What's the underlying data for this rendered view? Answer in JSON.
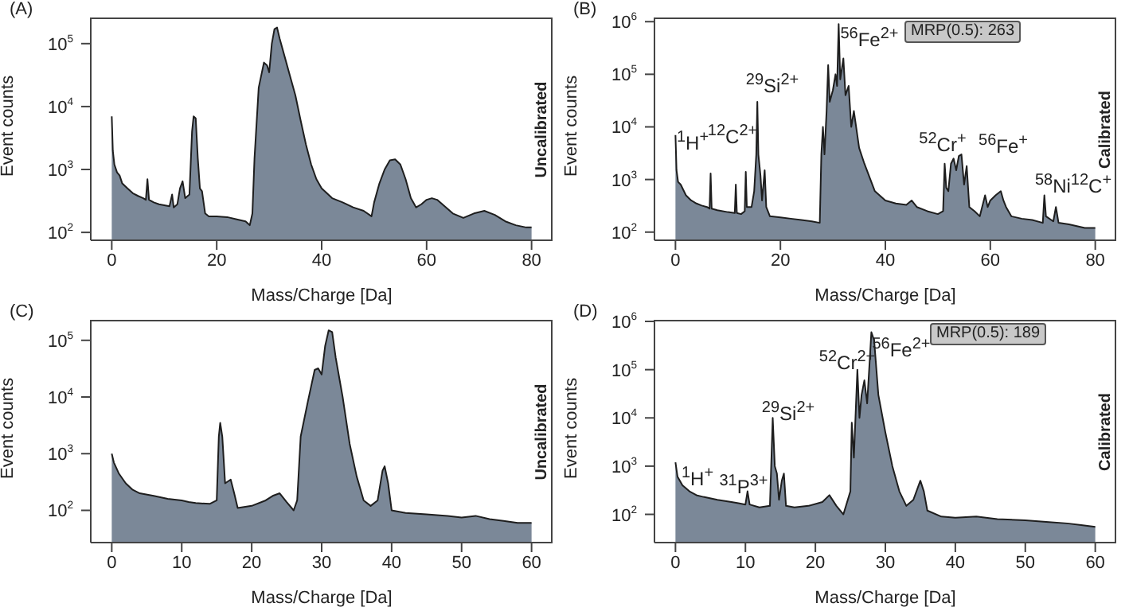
{
  "chart_data": [
    {
      "type": "area",
      "title": "(A)",
      "xlabel": "Mass/Charge [Da]",
      "ylabel": "Event counts",
      "y2label": "Uncalibrated",
      "color": "#7b8898",
      "log": true,
      "xlim": [
        -4,
        84
      ],
      "xticks": [
        0,
        20,
        40,
        60,
        80
      ],
      "ylim": [
        75,
        260000
      ],
      "yticks": [
        {
          "value": 100,
          "label": "10$^{2}$"
        },
        {
          "value": 1000,
          "label": "10$^{3}$"
        },
        {
          "value": 10000,
          "label": "10$^{4}$"
        },
        {
          "value": 100000,
          "label": "10$^{5}$"
        }
      ],
      "x": [
        0,
        0.2,
        0.5,
        1,
        1.5,
        2,
        3,
        4,
        5,
        6,
        6.5,
        6.8,
        7.1,
        8,
        9,
        10,
        11,
        11.5,
        11.8,
        12.5,
        13,
        13.5,
        14,
        14.8,
        15.3,
        15.6,
        16,
        16.4,
        16.8,
        17.2,
        17.8,
        18.5,
        20,
        22,
        24,
        25.5,
        26.3,
        26.8,
        27.2,
        28,
        29,
        29.6,
        30,
        30.5,
        31,
        31.5,
        32,
        33,
        34,
        35,
        36,
        37,
        38,
        39,
        40,
        42,
        44,
        46,
        48,
        49.5,
        50,
        51,
        52,
        53,
        54,
        55,
        56,
        57,
        58,
        59,
        60,
        61,
        62,
        63,
        65,
        67,
        69,
        71,
        73,
        75,
        77,
        79,
        80
      ],
      "values": [
        7000,
        2000,
        1200,
        900,
        800,
        600,
        500,
        420,
        380,
        350,
        330,
        700,
        330,
        300,
        280,
        270,
        260,
        400,
        250,
        280,
        500,
        650,
        350,
        400,
        4000,
        7000,
        6500,
        1500,
        500,
        450,
        200,
        180,
        180,
        175,
        160,
        150,
        130,
        200,
        1500,
        20000,
        50000,
        45000,
        35000,
        100000,
        170000,
        180000,
        120000,
        60000,
        30000,
        15000,
        6000,
        2500,
        1200,
        700,
        500,
        350,
        300,
        250,
        220,
        180,
        300,
        600,
        1000,
        1400,
        1450,
        1200,
        700,
        350,
        250,
        280,
        330,
        350,
        330,
        280,
        200,
        170,
        200,
        220,
        190,
        150,
        130,
        120,
        120
      ]
    },
    {
      "type": "area",
      "title": "(B)",
      "xlabel": "Mass/Charge [Da]",
      "ylabel": "Event counts",
      "y2label": "Calibrated",
      "color": "#7b8898",
      "log": true,
      "xlim": [
        -4,
        84
      ],
      "xticks": [
        0,
        20,
        40,
        60,
        80
      ],
      "ylim": [
        70,
        1200000
      ],
      "yticks": [
        {
          "value": 100,
          "label": "10$^{2}$"
        },
        {
          "value": 1000,
          "label": "10$^{3}$"
        },
        {
          "value": 10000,
          "label": "10$^{4}$"
        },
        {
          "value": 100000,
          "label": "10$^{5}$"
        },
        {
          "value": 1000000,
          "label": "10$^{6}$"
        }
      ],
      "x": [
        0,
        0.2,
        0.5,
        1,
        2,
        3,
        4,
        5,
        6,
        6.5,
        6.7,
        6.9,
        8,
        10,
        11.3,
        11.5,
        11.7,
        12.5,
        13.2,
        13.4,
        13.6,
        14.5,
        15,
        15.4,
        15.6,
        15.8,
        16.2,
        16.5,
        17,
        17.3,
        18,
        20,
        22,
        24,
        26,
        27.5,
        27.8,
        28.1,
        28.4,
        28.8,
        29.1,
        29.4,
        30,
        30.5,
        30.8,
        31.1,
        31.4,
        32,
        32.4,
        33,
        33.5,
        34,
        35,
        36,
        38,
        40,
        42,
        44,
        45,
        46,
        48,
        50,
        51,
        51.3,
        51.6,
        52,
        52.5,
        53,
        53.5,
        54,
        54.5,
        55,
        55.5,
        56,
        57,
        58,
        59,
        59.5,
        60,
        61,
        62,
        62.5,
        63,
        64,
        66,
        68,
        70,
        70.3,
        70.6,
        72,
        72.5,
        73,
        75,
        78,
        80
      ],
      "values": [
        7000,
        1500,
        900,
        800,
        500,
        400,
        350,
        320,
        300,
        280,
        1300,
        280,
        260,
        240,
        230,
        800,
        230,
        220,
        250,
        1400,
        300,
        300,
        600,
        3000,
        30000,
        3000,
        1200,
        400,
        1500,
        300,
        200,
        190,
        180,
        170,
        160,
        150,
        3000,
        10000,
        3000,
        20000,
        150000,
        30000,
        50000,
        100000,
        60000,
        900000,
        80000,
        200000,
        40000,
        60000,
        10000,
        20000,
        4000,
        2000,
        600,
        400,
        350,
        330,
        400,
        300,
        250,
        220,
        250,
        2000,
        700,
        600,
        2000,
        2500,
        1500,
        2800,
        3000,
        800,
        1800,
        300,
        250,
        200,
        500,
        300,
        400,
        500,
        600,
        400,
        300,
        200,
        180,
        170,
        150,
        500,
        200,
        160,
        300,
        150,
        140,
        120,
        120
      ],
      "annotations": [
        "MRP(0.5): 263",
        "$^{1}$H$^{+}$",
        "$^{12}$C$^{2+}$",
        "$^{29}$Si$^{2+}$",
        "$^{56}$Fe$^{2+}$",
        "$^{52}$Cr$^{+}$",
        "$^{56}$Fe$^{+}$",
        "$^{58}$Ni$^{12}$C$^{+}$"
      ]
    },
    {
      "type": "area",
      "title": "(C)",
      "xlabel": "Mass/Charge [Da]",
      "ylabel": "Event counts",
      "y2label": "Uncalibrated",
      "color": "#7b8898",
      "log": true,
      "xlim": [
        -3,
        63
      ],
      "xticks": [
        0,
        10,
        20,
        30,
        40,
        50,
        60
      ],
      "ylim": [
        27,
        230000
      ],
      "yticks": [
        {
          "value": 100,
          "label": "10$^{2}$"
        },
        {
          "value": 1000,
          "label": "10$^{3}$"
        },
        {
          "value": 10000,
          "label": "10$^{4}$"
        },
        {
          "value": 100000,
          "label": "10$^{5}$"
        }
      ],
      "x": [
        0,
        0.3,
        1,
        2,
        3,
        4,
        6,
        8,
        10,
        11,
        12,
        14,
        15,
        15.3,
        15.5,
        15.8,
        16.2,
        17,
        17.5,
        18,
        20,
        22,
        23,
        24,
        25,
        26,
        26.5,
        27,
        28,
        29,
        29.5,
        30,
        30.5,
        31,
        31.5,
        32,
        33,
        34,
        35,
        36,
        37,
        38,
        38.7,
        39,
        39.5,
        40,
        42,
        45,
        48,
        50,
        52,
        54,
        56,
        58,
        60
      ],
      "values": [
        1000,
        700,
        450,
        300,
        230,
        200,
        180,
        160,
        150,
        140,
        135,
        130,
        150,
        2000,
        3500,
        2000,
        300,
        350,
        200,
        110,
        120,
        150,
        180,
        200,
        140,
        100,
        150,
        2000,
        8000,
        30000,
        32000,
        25000,
        80000,
        150000,
        140000,
        50000,
        10000,
        1500,
        400,
        150,
        120,
        150,
        500,
        600,
        300,
        100,
        90,
        85,
        80,
        75,
        80,
        70,
        65,
        60,
        60
      ]
    },
    {
      "type": "area",
      "title": "(D)",
      "xlabel": "Mass/Charge [Da]",
      "ylabel": "Event counts",
      "y2label": "Calibrated",
      "color": "#7b8898",
      "log": true,
      "xlim": [
        -3,
        63
      ],
      "xticks": [
        0,
        10,
        20,
        30,
        40,
        50,
        60
      ],
      "ylim": [
        26,
        1080000
      ],
      "yticks": [
        {
          "value": 100,
          "label": "10$^{2}$"
        },
        {
          "value": 1000,
          "label": "10$^{3}$"
        },
        {
          "value": 10000,
          "label": "10$^{4}$"
        },
        {
          "value": 100000,
          "label": "10$^{5}$"
        },
        {
          "value": 1000000,
          "label": "10$^{6}$"
        }
      ],
      "x": [
        0,
        0.3,
        1,
        2,
        3,
        4,
        6,
        8,
        9,
        10,
        10.3,
        10.6,
        12,
        13.5,
        13.9,
        14.2,
        14.5,
        14.8,
        15.2,
        15.5,
        15.8,
        17,
        19,
        21,
        22,
        23,
        24,
        25,
        25.2,
        25.5,
        26,
        26.3,
        26.6,
        27,
        27.4,
        28,
        28.4,
        29,
        30,
        31,
        32,
        33,
        34,
        35,
        35.5,
        36,
        38,
        40,
        43,
        46,
        50,
        53,
        56,
        58,
        60
      ],
      "values": [
        1200,
        600,
        400,
        300,
        250,
        230,
        200,
        180,
        170,
        160,
        300,
        160,
        140,
        150,
        10000,
        1000,
        700,
        200,
        500,
        700,
        150,
        140,
        150,
        180,
        250,
        150,
        100,
        300,
        8000,
        1500,
        100000,
        10000,
        30000,
        60000,
        20000,
        600000,
        400000,
        30000,
        5000,
        1000,
        300,
        150,
        200,
        500,
        300,
        120,
        90,
        85,
        90,
        80,
        75,
        70,
        65,
        60,
        55
      ],
      "annotations": [
        "MRP(0.5): 189",
        "$^{1}$H$^{+}$",
        "$^{31}$P$^{3+}$",
        "$^{29}$Si$^{2+}$",
        "$^{52}$Cr$^{2+}$",
        "$^{56}$Fe$^{2+}$"
      ]
    }
  ]
}
